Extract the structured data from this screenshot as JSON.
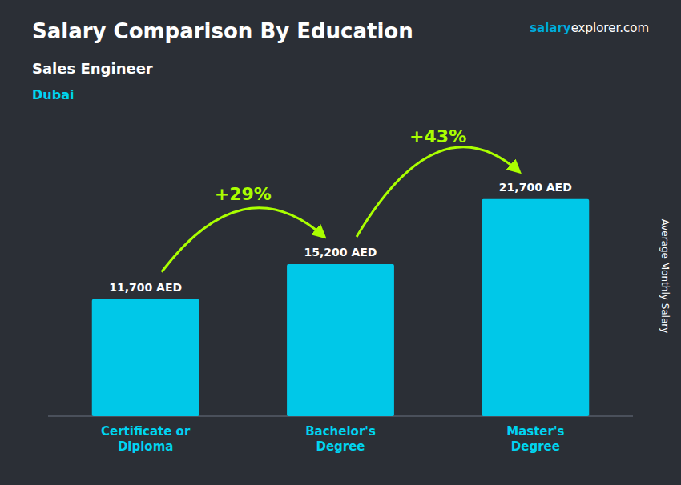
{
  "chart_data": {
    "type": "bar",
    "title": "Salary Comparison By Education",
    "subtitle": "Sales Engineer",
    "ylabel": "Average Monthly Salary",
    "annotations": [
      "Dubai",
      "salary",
      "explorer.com",
      "+29%",
      "+43%"
    ],
    "categories": [
      "Certificate or\nDiploma",
      "Bachelor's\nDegree",
      "Master's\nDegree"
    ],
    "values": [
      11700,
      15200,
      21700
    ],
    "value_labels": [
      "11,700 AED",
      "15,200 AED",
      "21,700 AED"
    ],
    "data_labels": true,
    "color": "#00c8e8",
    "ylim": [
      0,
      28000
    ],
    "yticks": [],
    "tick_labels": "x",
    "grid": false
  }
}
